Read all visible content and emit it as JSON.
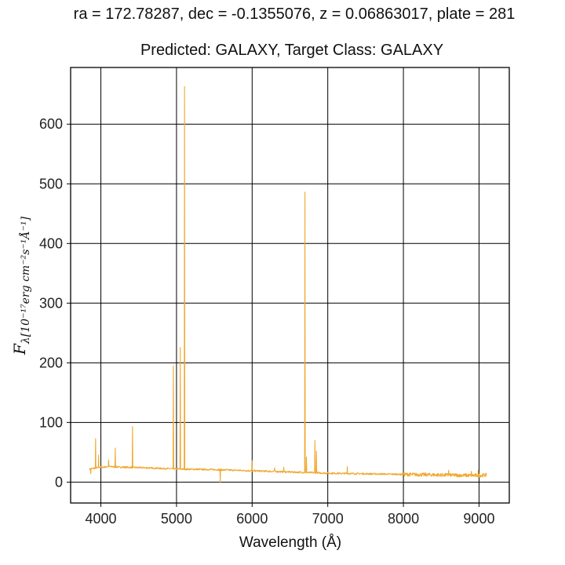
{
  "chart_data": {
    "type": "line",
    "supertitle": "ra = 172.78287, dec = -0.1355076, z = 0.06863017, plate = 281",
    "title": "Predicted: GALAXY, Target Class: GALAXY",
    "xlabel": "Wavelength (Å)",
    "ylabel_main": "F",
    "ylabel_sub": "λ[10⁻¹⁷erg cm⁻²s⁻¹Å⁻¹]",
    "xlim": [
      3600,
      9400
    ],
    "ylim": [
      -35,
      695
    ],
    "xticks": [
      4000,
      5000,
      6000,
      7000,
      8000,
      9000
    ],
    "yticks": [
      0,
      100,
      200,
      300,
      400,
      500,
      600
    ],
    "grid": true,
    "line_color": "#f0a830",
    "series": [
      {
        "continuum": [
          [
            3850,
            22
          ],
          [
            3950,
            24
          ],
          [
            4100,
            26
          ],
          [
            4300,
            25
          ],
          [
            4600,
            24
          ],
          [
            5000,
            22
          ],
          [
            5500,
            21
          ],
          [
            6000,
            19
          ],
          [
            6500,
            17
          ],
          [
            7000,
            15
          ],
          [
            7500,
            14
          ],
          [
            8000,
            13
          ],
          [
            8500,
            12
          ],
          [
            9000,
            11
          ],
          [
            9100,
            12
          ]
        ],
        "features": [
          {
            "x": 3868,
            "y": 14
          },
          {
            "x": 3930,
            "y": 73
          },
          {
            "x": 3970,
            "y": 45
          },
          {
            "x": 4102,
            "y": 37
          },
          {
            "x": 4190,
            "y": 57
          },
          {
            "x": 4420,
            "y": 93
          },
          {
            "x": 4958,
            "y": 195
          },
          {
            "x": 5050,
            "y": 226
          },
          {
            "x": 5105,
            "y": 663
          },
          {
            "x": 5577,
            "y": 32
          },
          {
            "x": 5580,
            "y": 0
          },
          {
            "x": 6000,
            "y": 36
          },
          {
            "x": 6300,
            "y": 24
          },
          {
            "x": 6420,
            "y": 25
          },
          {
            "x": 6700,
            "y": 486
          },
          {
            "x": 6720,
            "y": 42
          },
          {
            "x": 6830,
            "y": 70
          },
          {
            "x": 6850,
            "y": 52
          },
          {
            "x": 7260,
            "y": 26
          },
          {
            "x": 8600,
            "y": 20
          },
          {
            "x": 8900,
            "y": 18
          },
          {
            "x": 8990,
            "y": 20
          }
        ]
      }
    ]
  }
}
